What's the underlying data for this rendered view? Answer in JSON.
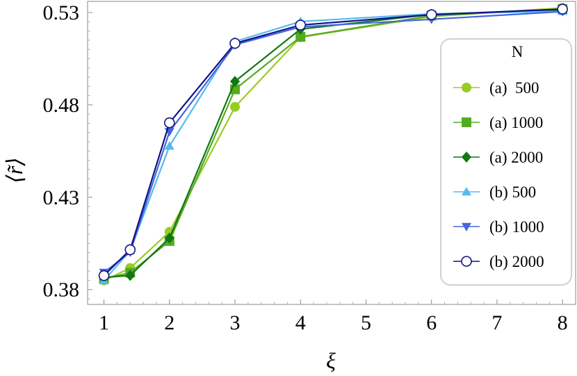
{
  "chart_data": {
    "type": "line",
    "title": "",
    "xlabel": "ξ",
    "ylabel": "⟨r̃⟩",
    "xlim": [
      0.75,
      8.2
    ],
    "ylim": [
      0.372,
      0.536
    ],
    "xticks": [
      1,
      2,
      3,
      4,
      5,
      6,
      7,
      8
    ],
    "xtick_labels": [
      "1",
      "2",
      "3",
      "4",
      "5",
      "6",
      "7",
      "8"
    ],
    "yticks": [
      0.38,
      0.43,
      0.48,
      0.53
    ],
    "ytick_labels": [
      "0.38",
      "0.43",
      "0.48",
      "0.53"
    ],
    "grid": false,
    "legend": {
      "title": "N",
      "placement": "right"
    },
    "series": [
      {
        "name": "(a)  500",
        "color": "#99cc22",
        "marker": "circle",
        "x": [
          1,
          1.4,
          2,
          3,
          4,
          6,
          8
        ],
        "y": [
          0.3849,
          0.3917,
          0.4113,
          0.4789,
          0.5166,
          0.5278,
          0.5325
        ]
      },
      {
        "name": "(a) 1000",
        "color": "#55aa22",
        "marker": "square",
        "x": [
          1,
          1.4,
          2,
          3,
          4,
          6,
          8
        ],
        "y": [
          0.3859,
          0.3892,
          0.4063,
          0.4884,
          0.5168,
          0.5283,
          0.5318
        ]
      },
      {
        "name": "(a) 2000",
        "color": "#117711",
        "marker": "diamond",
        "x": [
          1,
          1.4,
          2,
          3,
          4,
          6,
          8
        ],
        "y": [
          0.3866,
          0.3877,
          0.4079,
          0.4927,
          0.521,
          0.529,
          0.5312
        ]
      },
      {
        "name": "(b) 500",
        "color": "#55bbee",
        "marker": "triangle-up",
        "x": [
          1,
          1.4,
          2,
          3,
          4,
          6,
          8
        ],
        "y": [
          0.3849,
          0.4011,
          0.4577,
          0.5143,
          0.5251,
          0.5293,
          0.5306
        ]
      },
      {
        "name": "(b) 1000",
        "color": "#4466dd",
        "marker": "triangle-down",
        "x": [
          1,
          1.4,
          2,
          3,
          4,
          6,
          8
        ],
        "y": [
          0.3893,
          0.4002,
          0.4655,
          0.5125,
          0.5222,
          0.5263,
          0.5305
        ]
      },
      {
        "name": "(b) 2000",
        "color": "#111188",
        "marker": "open-circle",
        "x": [
          1,
          1.4,
          2,
          3,
          4,
          6,
          8
        ],
        "y": [
          0.3876,
          0.4016,
          0.4703,
          0.5133,
          0.5232,
          0.5288,
          0.5318
        ]
      }
    ]
  }
}
